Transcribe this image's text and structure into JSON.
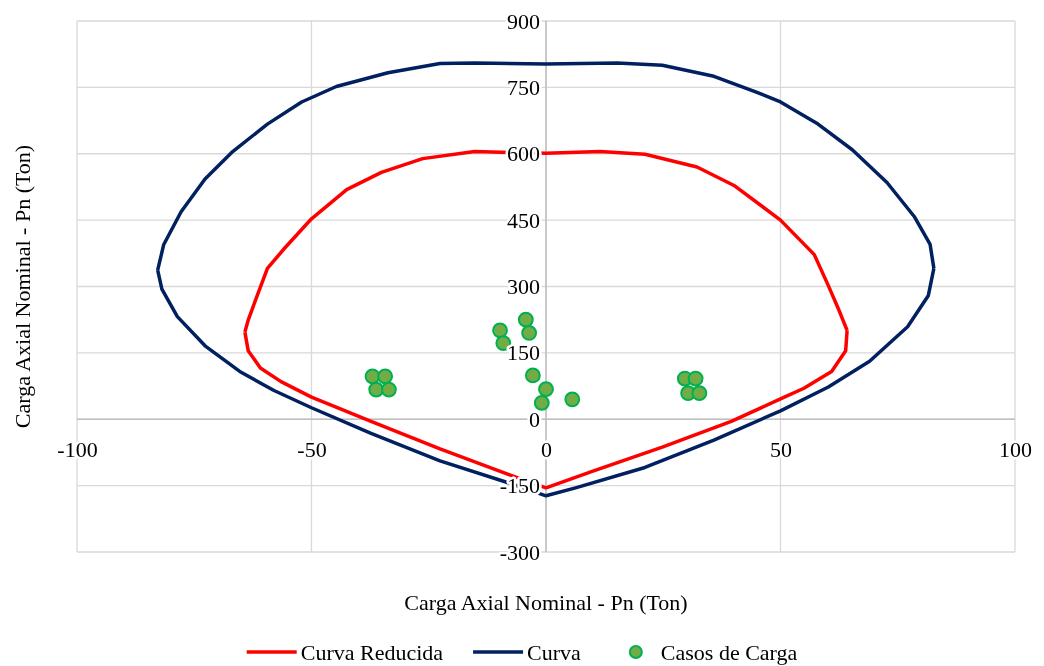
{
  "chart_data": {
    "type": "line",
    "xlabel": "Carga Axial Nominal - Pn (Ton)",
    "ylabel": "Carga Axial Nominal - Pn (Ton)",
    "xlim": [
      -100,
      100
    ],
    "xticks": [
      -100,
      -50,
      0,
      50,
      100
    ],
    "ylim": [
      -300,
      900
    ],
    "yticks": [
      -300,
      -150,
      0,
      150,
      300,
      450,
      600,
      750,
      900
    ],
    "grid": true,
    "legend": "bottom",
    "line_style": "solid",
    "series": [
      {
        "name": "Curva Reducida",
        "color": "#ff0000",
        "x": [
          -64.2,
          -63.5,
          -61.6,
          -59.4,
          -55.7,
          -50,
          -42.5,
          -35.1,
          -26.3,
          -15.2,
          0,
          11.5,
          21.1,
          32.2,
          40.3,
          50,
          57.2,
          60.2,
          62.4,
          64.2,
          null,
          -64.2,
          -63.5,
          -60.9,
          -56.5,
          -50,
          -37.3,
          -22.6,
          -7.9,
          0,
          10,
          24.8,
          39.5,
          50,
          55,
          60.9,
          63.9,
          64.2
        ],
        "values": [
          197,
          224,
          279,
          341,
          387,
          453,
          519,
          558,
          589,
          605,
          601,
          605,
          599,
          570,
          527,
          450,
          372,
          302,
          248,
          201,
          null,
          197,
          155,
          116,
          85,
          50,
          -5,
          -67,
          -125,
          -155,
          -117,
          -63,
          -5,
          46,
          70,
          108,
          155,
          201
        ]
      },
      {
        "name": "Curva",
        "color": "#002060",
        "x": [
          -82.8,
          -81.5,
          -77.8,
          -72.7,
          -66.8,
          -59.4,
          -52.1,
          -44.7,
          -33.7,
          -22.6,
          -15.2,
          0,
          15.2,
          24.8,
          35.8,
          44.7,
          50,
          58,
          65.3,
          72.7,
          78.6,
          81.9,
          82.7,
          null,
          -82.8,
          -81.9,
          -78.6,
          -72.7,
          -65.3,
          -58,
          -50,
          -37.3,
          -22.6,
          -7.9,
          0,
          6.3,
          21.1,
          35.8,
          50,
          60.2,
          69,
          77.1,
          81.5,
          82.7
        ],
        "values": [
          337,
          395,
          469,
          543,
          605,
          667,
          717,
          752,
          783,
          804,
          805,
          803,
          805,
          800,
          775,
          740,
          717,
          667,
          609,
          535,
          457,
          395,
          341,
          null,
          337,
          294,
          232,
          166,
          108,
          65,
          26,
          -32,
          -94,
          -144,
          -173,
          -155,
          -109,
          -47,
          19,
          73,
          131,
          209,
          279,
          341
        ]
      },
      {
        "name": "Casos de Carga",
        "type": "scatter",
        "color": "#70ad47",
        "marker": "circle",
        "x": [
          -37,
          -34.3,
          -36.2,
          -33.5,
          -9.8,
          -9.1,
          -4.3,
          -3.6,
          -2.8,
          0,
          -0.9,
          5.6,
          29.6,
          31.9,
          30.3,
          32.7
        ],
        "values": [
          97,
          97,
          67,
          67,
          201,
          172,
          225,
          195,
          99,
          68,
          37,
          45,
          92,
          92,
          59,
          59
        ]
      }
    ]
  }
}
